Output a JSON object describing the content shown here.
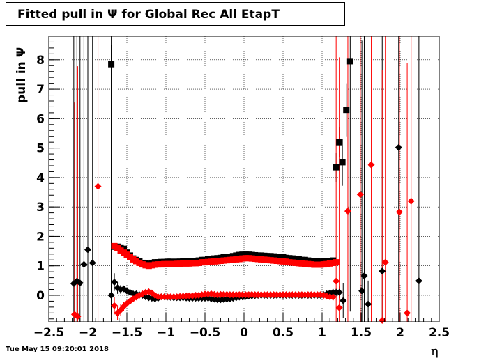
{
  "title": "Fitted pull in  Ψ  for Global Rec All EtapT",
  "timestamp": "Tue May 15 09:20:01 2018",
  "chart_data": {
    "type": "scatter",
    "title": "Fitted pull in  Ψ  for Global Rec All EtapT",
    "xlabel": "η",
    "ylabel": "pull in  Ψ",
    "xlim": [
      -2.5,
      2.5
    ],
    "ylim": [
      -0.9,
      8.8
    ],
    "x_ticks": [
      "−2.5",
      "−2",
      "−1.5",
      "−1",
      "−0.5",
      "0",
      "0.5",
      "1",
      "1.5",
      "2",
      "2.5"
    ],
    "y_ticks": [
      "0",
      "1",
      "2",
      "3",
      "4",
      "5",
      "6",
      "7",
      "8"
    ],
    "grid": true,
    "series": [
      {
        "marker": "diamond",
        "color": "#000000",
        "x": [
          -2.18,
          -2.14,
          -2.1,
          -2.05,
          -2.0,
          -1.94,
          -1.7,
          -1.66,
          -1.62,
          -1.58,
          -1.54,
          -1.5,
          -1.46,
          -1.42,
          -1.38,
          -1.34,
          -1.3,
          -1.26,
          -1.22,
          -1.18,
          -1.14,
          -1.1,
          -1.06,
          -1.02,
          -0.98,
          -0.94,
          -0.9,
          -0.86,
          -0.82,
          -0.78,
          -0.74,
          -0.7,
          -0.66,
          -0.62,
          -0.58,
          -0.54,
          -0.5,
          -0.46,
          -0.42,
          -0.38,
          -0.34,
          -0.3,
          -0.26,
          -0.22,
          -0.18,
          -0.14,
          -0.1,
          -0.06,
          -0.02,
          0.02,
          0.06,
          0.1,
          0.14,
          0.18,
          0.22,
          0.26,
          0.3,
          0.34,
          0.38,
          0.42,
          0.46,
          0.5,
          0.54,
          0.58,
          0.62,
          0.66,
          0.7,
          0.74,
          0.78,
          0.82,
          0.86,
          0.9,
          0.94,
          0.98,
          1.02,
          1.06,
          1.1,
          1.14,
          1.18,
          1.22,
          1.27,
          1.51,
          1.54,
          1.59,
          1.77,
          1.98,
          2.24
        ],
        "y": [
          0.4,
          0.48,
          0.42,
          1.05,
          1.55,
          1.1,
          0.0,
          0.45,
          0.25,
          0.2,
          0.22,
          0.15,
          0.1,
          0.05,
          0.05,
          0.02,
          0.0,
          -0.05,
          -0.08,
          -0.1,
          -0.12,
          -0.1,
          -0.05,
          -0.05,
          -0.06,
          -0.07,
          -0.08,
          -0.08,
          -0.08,
          -0.08,
          -0.09,
          -0.1,
          -0.1,
          -0.1,
          -0.1,
          -0.1,
          -0.1,
          -0.1,
          -0.12,
          -0.13,
          -0.15,
          -0.15,
          -0.14,
          -0.13,
          -0.12,
          -0.1,
          -0.08,
          -0.06,
          -0.05,
          -0.04,
          -0.03,
          -0.02,
          -0.01,
          0.0,
          0.0,
          0.0,
          0.0,
          0.0,
          0.0,
          0.0,
          0.0,
          0.0,
          0.0,
          0.0,
          0.0,
          0.0,
          0.0,
          0.0,
          0.0,
          0.0,
          0.0,
          0.0,
          0.0,
          0.0,
          0.02,
          0.05,
          0.08,
          0.1,
          0.1,
          0.1,
          -0.18,
          0.15,
          0.66,
          -0.3,
          0.82,
          5.02,
          0.49
        ],
        "err": [
          8.5,
          8.5,
          8.5,
          8.5,
          8.5,
          8.5,
          8.5,
          0.3,
          0.2,
          0.15,
          0.1,
          0.08,
          0.06,
          0.05,
          0.04,
          0.04,
          0.04,
          0.04,
          0.04,
          0.04,
          0.04,
          0.04,
          0.04,
          0.04,
          0.04,
          0.04,
          0.04,
          0.04,
          0.04,
          0.04,
          0.04,
          0.04,
          0.04,
          0.04,
          0.04,
          0.04,
          0.04,
          0.04,
          0.04,
          0.04,
          0.04,
          0.04,
          0.04,
          0.04,
          0.04,
          0.04,
          0.04,
          0.04,
          0.04,
          0.04,
          0.04,
          0.04,
          0.04,
          0.04,
          0.04,
          0.04,
          0.04,
          0.04,
          0.04,
          0.04,
          0.04,
          0.04,
          0.04,
          0.04,
          0.04,
          0.04,
          0.04,
          0.04,
          0.04,
          0.04,
          0.04,
          0.04,
          0.04,
          0.04,
          0.06,
          0.08,
          0.1,
          0.12,
          0.15,
          0.2,
          0.6,
          8.5,
          8.5,
          0.8,
          8.5,
          8.5,
          8.5
        ]
      },
      {
        "marker": "square",
        "color": "#000000",
        "x": [
          -1.7,
          -1.66,
          -1.62,
          -1.58,
          -1.54,
          -1.5,
          -1.46,
          -1.42,
          -1.38,
          -1.34,
          -1.3,
          -1.26,
          -1.22,
          -1.18,
          -1.14,
          -1.1,
          -1.06,
          -1.02,
          -0.98,
          -0.94,
          -0.9,
          -0.86,
          -0.82,
          -0.78,
          -0.74,
          -0.7,
          -0.66,
          -0.62,
          -0.58,
          -0.54,
          -0.5,
          -0.46,
          -0.42,
          -0.38,
          -0.34,
          -0.3,
          -0.26,
          -0.22,
          -0.18,
          -0.14,
          -0.1,
          -0.06,
          -0.02,
          0.02,
          0.06,
          0.1,
          0.14,
          0.18,
          0.22,
          0.26,
          0.3,
          0.34,
          0.38,
          0.42,
          0.46,
          0.5,
          0.54,
          0.58,
          0.62,
          0.66,
          0.7,
          0.74,
          0.78,
          0.82,
          0.86,
          0.9,
          0.94,
          0.98,
          1.02,
          1.06,
          1.1,
          1.14,
          1.18,
          1.22,
          1.26,
          1.31,
          1.36
        ],
        "y": [
          7.85,
          1.65,
          1.65,
          1.6,
          1.58,
          1.45,
          1.35,
          1.25,
          1.2,
          1.15,
          1.1,
          1.08,
          1.05,
          1.1,
          1.12,
          1.12,
          1.13,
          1.13,
          1.14,
          1.14,
          1.13,
          1.14,
          1.14,
          1.15,
          1.15,
          1.16,
          1.17,
          1.17,
          1.18,
          1.2,
          1.2,
          1.22,
          1.24,
          1.25,
          1.26,
          1.27,
          1.29,
          1.3,
          1.31,
          1.33,
          1.35,
          1.37,
          1.38,
          1.38,
          1.38,
          1.37,
          1.36,
          1.35,
          1.35,
          1.34,
          1.33,
          1.33,
          1.32,
          1.31,
          1.3,
          1.29,
          1.27,
          1.26,
          1.25,
          1.24,
          1.22,
          1.2,
          1.2,
          1.18,
          1.17,
          1.16,
          1.15,
          1.14,
          1.15,
          1.16,
          1.17,
          1.18,
          4.35,
          5.2,
          4.52,
          6.3,
          7.95
        ],
        "err": [
          8.5,
          0.1,
          0.08,
          0.06,
          0.05,
          0.04,
          0.03,
          0.03,
          0.03,
          0.03,
          0.03,
          0.03,
          0.03,
          0.03,
          0.03,
          0.03,
          0.03,
          0.03,
          0.03,
          0.03,
          0.03,
          0.03,
          0.03,
          0.03,
          0.03,
          0.03,
          0.03,
          0.03,
          0.03,
          0.03,
          0.03,
          0.03,
          0.03,
          0.03,
          0.03,
          0.03,
          0.03,
          0.03,
          0.03,
          0.03,
          0.03,
          0.03,
          0.03,
          0.03,
          0.03,
          0.03,
          0.03,
          0.03,
          0.03,
          0.03,
          0.03,
          0.03,
          0.03,
          0.03,
          0.03,
          0.03,
          0.03,
          0.03,
          0.03,
          0.03,
          0.03,
          0.03,
          0.03,
          0.03,
          0.03,
          0.03,
          0.03,
          0.03,
          0.03,
          0.03,
          0.03,
          0.03,
          0.5,
          0.5,
          0.8,
          0.9,
          8.5
        ]
      },
      {
        "marker": "diamond",
        "color": "#ff0000",
        "x": [
          -2.17,
          -2.13,
          -1.87,
          -1.66,
          -1.62,
          -1.58,
          -1.54,
          -1.5,
          -1.46,
          -1.42,
          -1.38,
          -1.34,
          -1.3,
          -1.26,
          -1.22,
          -1.18,
          -1.14,
          -1.1,
          -1.06,
          -1.02,
          -0.98,
          -0.94,
          -0.9,
          -0.86,
          -0.82,
          -0.78,
          -0.74,
          -0.7,
          -0.66,
          -0.62,
          -0.58,
          -0.54,
          -0.5,
          -0.46,
          -0.42,
          -0.38,
          -0.34,
          -0.3,
          -0.26,
          -0.22,
          -0.18,
          -0.14,
          -0.1,
          -0.06,
          -0.02,
          0.02,
          0.06,
          0.1,
          0.14,
          0.18,
          0.22,
          0.26,
          0.3,
          0.34,
          0.38,
          0.42,
          0.46,
          0.5,
          0.54,
          0.58,
          0.62,
          0.66,
          0.7,
          0.74,
          0.78,
          0.82,
          0.86,
          0.9,
          0.94,
          0.98,
          1.02,
          1.06,
          1.1,
          1.14,
          1.18,
          1.22,
          1.33,
          1.49,
          1.63,
          1.77,
          1.81,
          1.99,
          2.09,
          2.14
        ],
        "y": [
          -0.65,
          -0.72,
          3.7,
          -0.35,
          -0.6,
          -0.5,
          -0.38,
          -0.28,
          -0.2,
          -0.12,
          -0.06,
          0.0,
          0.05,
          0.1,
          0.12,
          0.08,
          0.0,
          -0.05,
          -0.05,
          -0.05,
          -0.05,
          -0.05,
          -0.05,
          -0.05,
          -0.04,
          -0.03,
          -0.02,
          -0.02,
          -0.02,
          0.0,
          0.0,
          0.02,
          0.04,
          0.04,
          0.05,
          0.03,
          0.02,
          0.03,
          0.03,
          0.03,
          0.02,
          0.02,
          0.02,
          0.02,
          0.02,
          0.02,
          0.02,
          0.03,
          0.02,
          0.02,
          0.02,
          0.02,
          0.02,
          0.02,
          0.02,
          0.02,
          0.02,
          0.02,
          0.02,
          0.02,
          0.02,
          0.02,
          0.02,
          0.02,
          0.02,
          0.02,
          0.02,
          0.02,
          0.02,
          0.02,
          0.0,
          -0.03,
          -0.05,
          -0.06,
          0.48,
          -0.42,
          2.86,
          3.42,
          4.43,
          -0.85,
          1.12,
          2.83,
          -0.6,
          3.2
        ],
        "err": [
          7.2,
          8.5,
          8.5,
          0.3,
          0.25,
          0.2,
          0.15,
          0.1,
          0.08,
          0.06,
          0.05,
          0.04,
          0.04,
          0.04,
          0.04,
          0.04,
          0.04,
          0.04,
          0.04,
          0.04,
          0.04,
          0.04,
          0.04,
          0.04,
          0.04,
          0.04,
          0.04,
          0.04,
          0.04,
          0.04,
          0.04,
          0.04,
          0.04,
          0.04,
          0.04,
          0.04,
          0.04,
          0.04,
          0.04,
          0.04,
          0.04,
          0.04,
          0.04,
          0.04,
          0.04,
          0.04,
          0.04,
          0.04,
          0.04,
          0.04,
          0.04,
          0.04,
          0.04,
          0.04,
          0.04,
          0.04,
          0.04,
          0.04,
          0.04,
          0.04,
          0.04,
          0.04,
          0.04,
          0.04,
          0.04,
          0.04,
          0.04,
          0.04,
          0.04,
          0.04,
          0.06,
          0.08,
          0.1,
          0.12,
          8.5,
          8.5,
          8.5,
          8.5,
          8.5,
          8.5,
          8.5,
          8.5,
          8.5,
          8.5
        ]
      },
      {
        "marker": "square",
        "color": "#ff0000",
        "x": [
          -1.66,
          -1.62,
          -1.58,
          -1.54,
          -1.5,
          -1.46,
          -1.42,
          -1.38,
          -1.34,
          -1.3,
          -1.26,
          -1.22,
          -1.18,
          -1.14,
          -1.1,
          -1.06,
          -1.02,
          -0.98,
          -0.94,
          -0.9,
          -0.86,
          -0.82,
          -0.78,
          -0.74,
          -0.7,
          -0.66,
          -0.62,
          -0.58,
          -0.54,
          -0.5,
          -0.46,
          -0.42,
          -0.38,
          -0.34,
          -0.3,
          -0.26,
          -0.22,
          -0.18,
          -0.14,
          -0.1,
          -0.06,
          -0.02,
          0.02,
          0.06,
          0.1,
          0.14,
          0.18,
          0.22,
          0.26,
          0.3,
          0.34,
          0.38,
          0.42,
          0.46,
          0.5,
          0.54,
          0.58,
          0.62,
          0.66,
          0.7,
          0.74,
          0.78,
          0.82,
          0.86,
          0.9,
          0.94,
          0.98,
          1.02,
          1.06,
          1.1,
          1.14,
          1.18
        ],
        "y": [
          1.67,
          1.6,
          1.52,
          1.45,
          1.38,
          1.3,
          1.22,
          1.16,
          1.1,
          1.05,
          1.02,
          1.0,
          1.02,
          1.04,
          1.05,
          1.05,
          1.06,
          1.06,
          1.06,
          1.06,
          1.07,
          1.07,
          1.08,
          1.08,
          1.08,
          1.09,
          1.09,
          1.1,
          1.12,
          1.12,
          1.13,
          1.14,
          1.15,
          1.16,
          1.17,
          1.18,
          1.19,
          1.2,
          1.21,
          1.22,
          1.23,
          1.25,
          1.26,
          1.26,
          1.25,
          1.24,
          1.23,
          1.22,
          1.21,
          1.2,
          1.19,
          1.18,
          1.17,
          1.16,
          1.15,
          1.14,
          1.12,
          1.11,
          1.1,
          1.09,
          1.08,
          1.07,
          1.06,
          1.05,
          1.04,
          1.04,
          1.04,
          1.05,
          1.06,
          1.08,
          1.1,
          1.12
        ],
        "err": [
          0.1,
          0.08,
          0.06,
          0.05,
          0.04,
          0.03,
          0.03,
          0.03,
          0.03,
          0.03,
          0.03,
          0.03,
          0.03,
          0.03,
          0.03,
          0.03,
          0.03,
          0.03,
          0.03,
          0.03,
          0.03,
          0.03,
          0.03,
          0.03,
          0.03,
          0.03,
          0.03,
          0.03,
          0.03,
          0.03,
          0.03,
          0.03,
          0.03,
          0.03,
          0.03,
          0.03,
          0.03,
          0.03,
          0.03,
          0.03,
          0.03,
          0.03,
          0.03,
          0.03,
          0.03,
          0.03,
          0.03,
          0.03,
          0.03,
          0.03,
          0.03,
          0.03,
          0.03,
          0.03,
          0.03,
          0.03,
          0.03,
          0.03,
          0.03,
          0.03,
          0.03,
          0.03,
          0.03,
          0.03,
          0.03,
          0.03,
          0.03,
          0.03,
          0.03,
          0.03,
          0.03,
          0.03
        ]
      }
    ]
  }
}
